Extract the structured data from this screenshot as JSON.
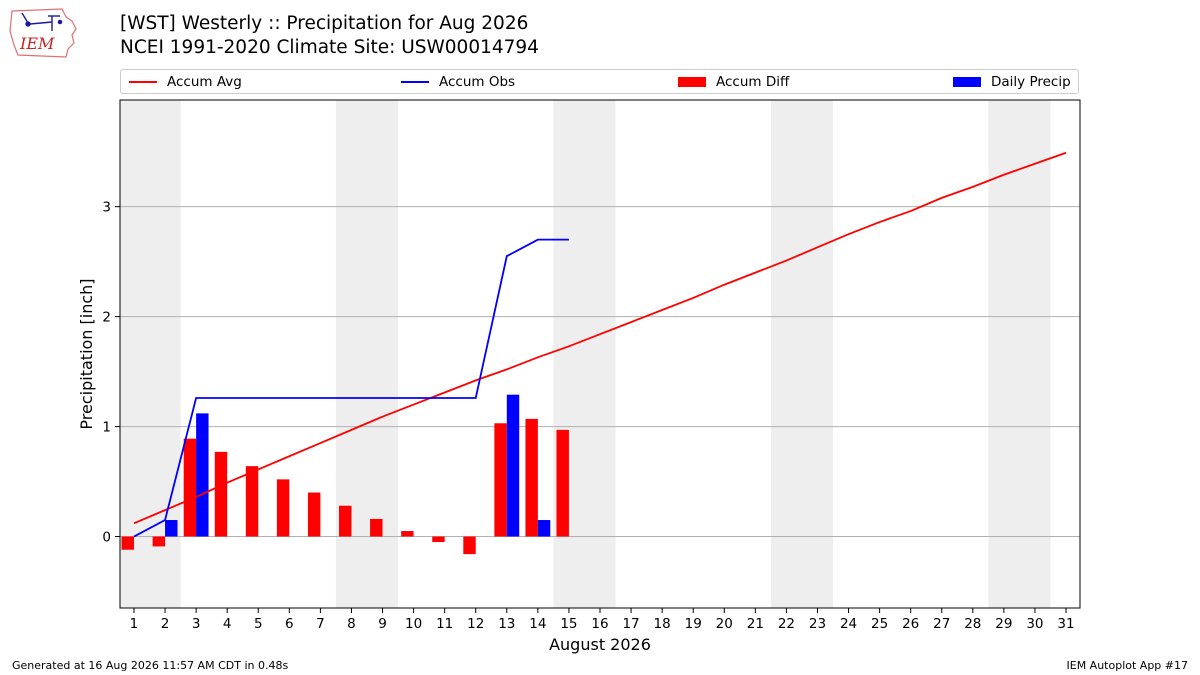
{
  "header": {
    "title_line1": "[WST] Westerly :: Precipitation for Aug 2026",
    "title_line2": "NCEI 1991-2020 Climate Site: USW00014794"
  },
  "logo": {
    "text": "IEM"
  },
  "footer": {
    "left": "Generated at 16 Aug 2026 11:57 AM CDT in 0.48s",
    "right": "IEM Autoplot App #17"
  },
  "colors": {
    "accum_avg": "#ff0000",
    "accum_obs": "#0000ff",
    "accum_diff": "#ff0000",
    "daily_precip": "#0000ff",
    "weekend_shade": "#eeeeee",
    "grid": "#b0b0b0"
  },
  "chart_data": {
    "type": "bar",
    "xlabel": "August 2026",
    "ylabel": "Precipitation [inch]",
    "xlim": [
      0.55,
      31.45
    ],
    "ylim": [
      -0.65,
      3.97
    ],
    "yticks": [
      0,
      1,
      2,
      3
    ],
    "grid": "y",
    "legend_placement": "top",
    "legend": [
      "Accum Avg",
      "Accum Obs",
      "Accum Diff",
      "Daily Precip"
    ],
    "days": [
      1,
      2,
      3,
      4,
      5,
      6,
      7,
      8,
      9,
      10,
      11,
      12,
      13,
      14,
      15,
      16,
      17,
      18,
      19,
      20,
      21,
      22,
      23,
      24,
      25,
      26,
      27,
      28,
      29,
      30,
      31
    ],
    "shaded_day_ranges": [
      [
        1,
        2
      ],
      [
        8,
        9
      ],
      [
        15,
        16
      ],
      [
        22,
        23
      ],
      [
        29,
        30
      ]
    ],
    "series": [
      {
        "name": "Accum Avg",
        "kind": "line",
        "values": [
          0.12,
          0.24,
          0.36,
          0.49,
          0.61,
          0.73,
          0.85,
          0.97,
          1.09,
          1.2,
          1.31,
          1.42,
          1.52,
          1.63,
          1.73,
          1.84,
          1.95,
          2.06,
          2.17,
          2.29,
          2.4,
          2.51,
          2.63,
          2.75,
          2.86,
          2.96,
          3.08,
          3.18,
          3.29,
          3.39,
          3.49
        ]
      },
      {
        "name": "Accum Obs",
        "kind": "line",
        "values": [
          0.0,
          0.15,
          1.26,
          1.26,
          1.26,
          1.26,
          1.26,
          1.26,
          1.26,
          1.26,
          1.26,
          1.26,
          2.55,
          2.7,
          2.7
        ]
      },
      {
        "name": "Accum Diff",
        "kind": "bar",
        "values": [
          -0.12,
          -0.09,
          0.89,
          0.77,
          0.64,
          0.52,
          0.4,
          0.28,
          0.16,
          0.05,
          -0.05,
          -0.16,
          1.03,
          1.07,
          0.97
        ]
      },
      {
        "name": "Daily Precip",
        "kind": "bar",
        "values": [
          0.0,
          0.15,
          1.12,
          0.0,
          0.0,
          0.0,
          0.0,
          0.0,
          0.0,
          0.0,
          0.0,
          0.0,
          1.29,
          0.15,
          0.0
        ]
      }
    ]
  }
}
